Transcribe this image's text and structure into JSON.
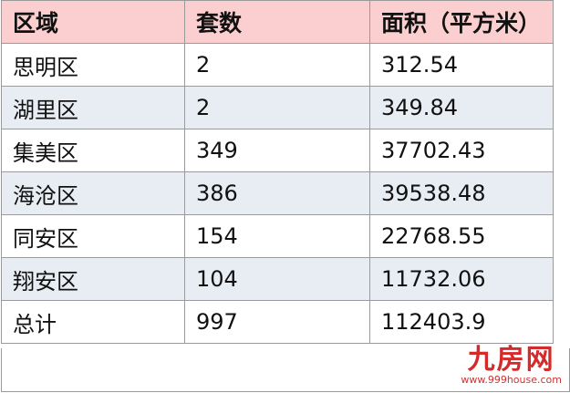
{
  "table": {
    "headers": [
      "区域",
      "套数",
      "面积（平方米）"
    ],
    "rows": [
      [
        "思明区",
        "2",
        "312.54"
      ],
      [
        "湖里区",
        "2",
        "349.84"
      ],
      [
        "集美区",
        "349",
        "37702.43"
      ],
      [
        "海沧区",
        "386",
        "39538.48"
      ],
      [
        "同安区",
        "154",
        "22768.55"
      ],
      [
        "翔安区",
        "104",
        "11732.06"
      ],
      [
        "总计",
        "997",
        "112403.9"
      ]
    ]
  },
  "watermark": {
    "name": "九房网",
    "url": "www.999house.com"
  },
  "colors": {
    "header_bg": "#fbcfcf",
    "alt_row_bg": "#e8edf4",
    "logo": "#d42a2a"
  }
}
